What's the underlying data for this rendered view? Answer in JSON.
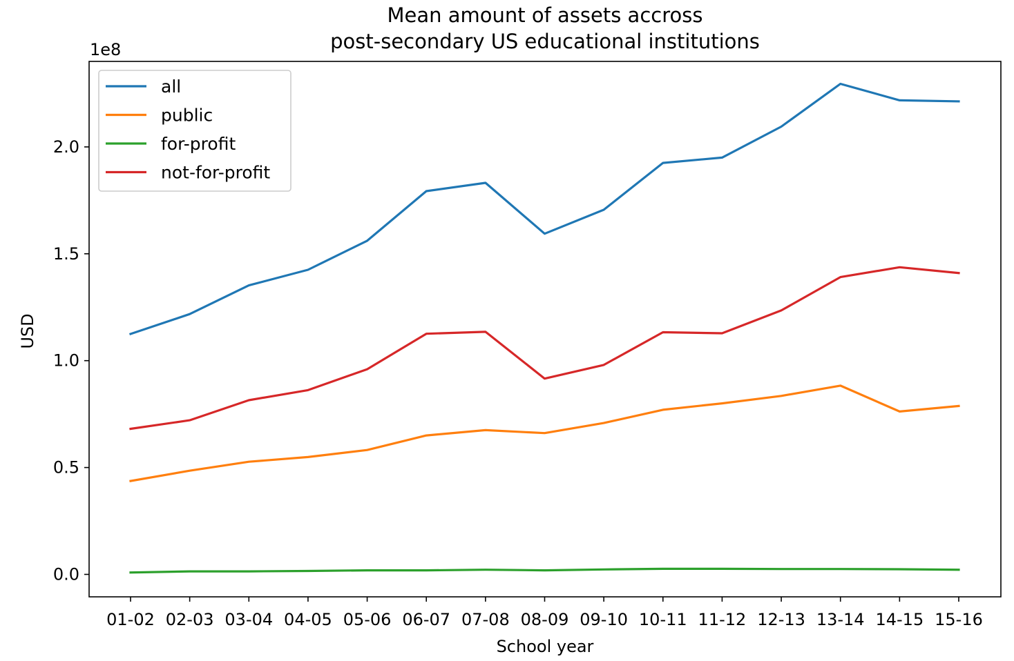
{
  "chart_data": {
    "type": "line",
    "title_lines": [
      "Mean amount of assets accross",
      "post-secondary US educational institutions"
    ],
    "xlabel": "School year",
    "ylabel": "USD",
    "y_offset_label": "1e8",
    "categories": [
      "01-02",
      "02-03",
      "03-04",
      "04-05",
      "05-06",
      "06-07",
      "07-08",
      "08-09",
      "09-10",
      "10-11",
      "11-12",
      "12-13",
      "13-14",
      "14-15",
      "15-16"
    ],
    "y_scale": 100000000,
    "ylim": [
      -0.105,
      2.4
    ],
    "yticks": [
      0.0,
      0.5,
      1.0,
      1.5,
      2.0
    ],
    "ytick_labels": [
      "0.0",
      "0.5",
      "1.0",
      "1.5",
      "2.0"
    ],
    "grid": false,
    "legend_position": "top-left",
    "series": [
      {
        "name": "all",
        "color": "#1f77b4",
        "values": [
          1.125,
          1.218,
          1.352,
          1.425,
          1.561,
          1.793,
          1.832,
          1.594,
          1.706,
          1.925,
          1.95,
          2.095,
          2.295,
          2.218,
          2.213
        ]
      },
      {
        "name": "public",
        "color": "#ff7f0e",
        "values": [
          0.437,
          0.485,
          0.527,
          0.549,
          0.582,
          0.65,
          0.675,
          0.661,
          0.708,
          0.77,
          0.8,
          0.835,
          0.883,
          0.762,
          0.788
        ]
      },
      {
        "name": "for-profit",
        "color": "#2ca02c",
        "values": [
          0.009,
          0.014,
          0.014,
          0.016,
          0.019,
          0.019,
          0.022,
          0.019,
          0.023,
          0.026,
          0.026,
          0.025,
          0.025,
          0.024,
          0.022
        ]
      },
      {
        "name": "not-for-profit",
        "color": "#d62728",
        "values": [
          0.681,
          0.721,
          0.815,
          0.862,
          0.96,
          1.126,
          1.135,
          0.916,
          0.98,
          1.133,
          1.128,
          1.235,
          1.391,
          1.437,
          1.41
        ]
      }
    ]
  }
}
